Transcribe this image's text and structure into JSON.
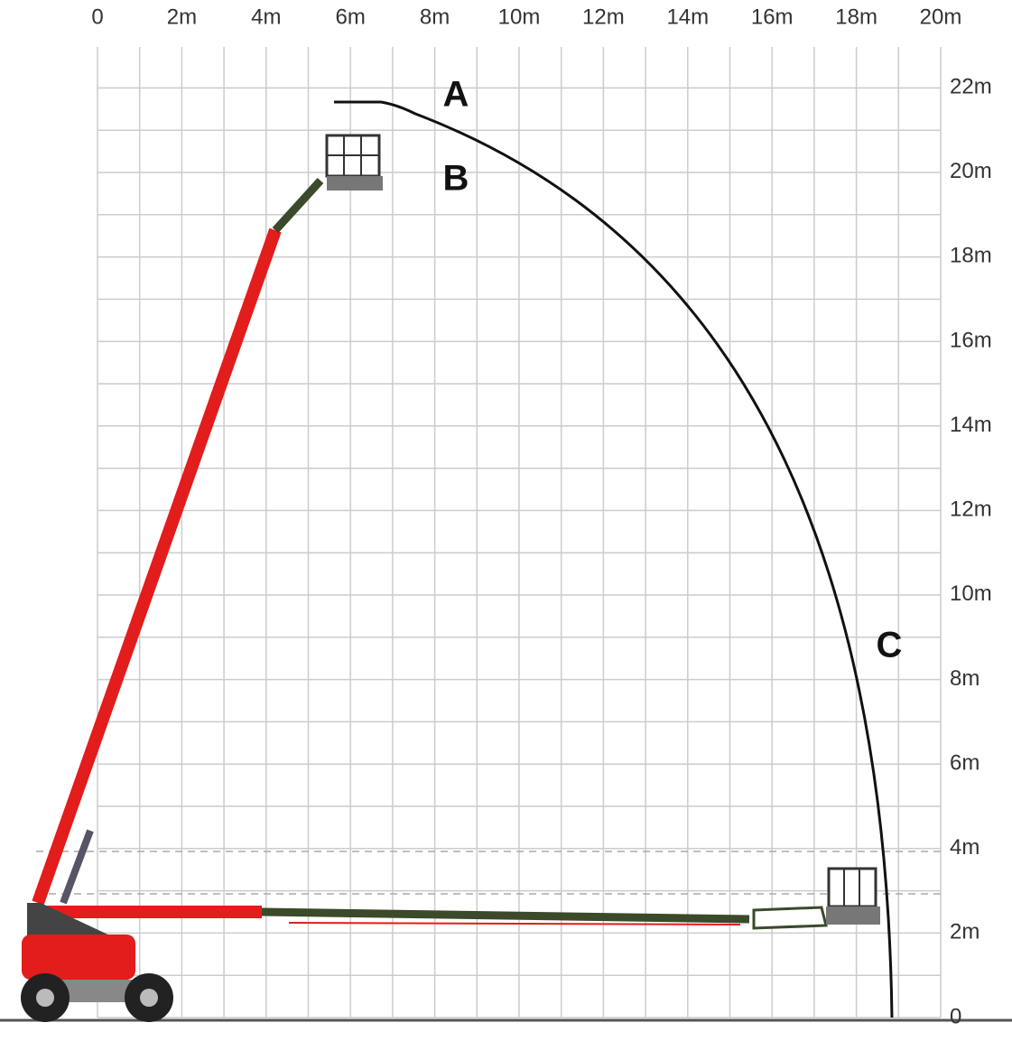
{
  "x_axis": {
    "labels": [
      "0",
      "2m",
      "4m",
      "6m",
      "8m",
      "10m",
      "12m",
      "14m",
      "16m",
      "18m",
      "20m"
    ]
  },
  "y_axis": {
    "labels": [
      "22m",
      "20m",
      "18m",
      "16m",
      "14m",
      "12m",
      "10m",
      "8m",
      "6m",
      "4m",
      "2m",
      "0"
    ]
  },
  "points": [
    {
      "label": "A"
    },
    {
      "label": "B"
    },
    {
      "label": "C"
    }
  ]
}
